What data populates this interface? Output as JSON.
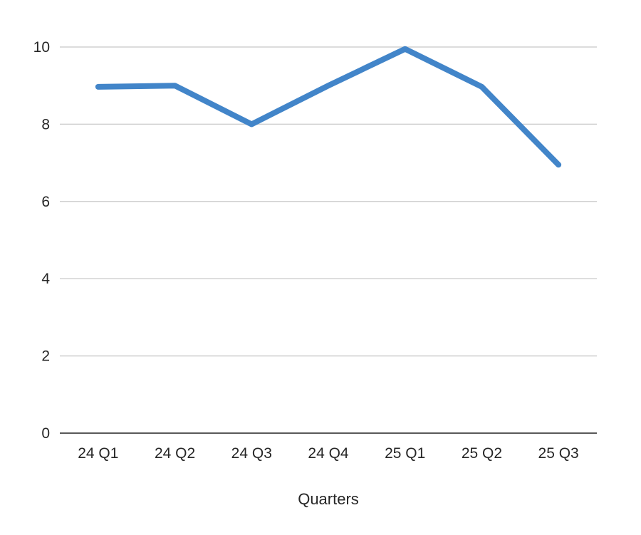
{
  "chart_data": {
    "type": "line",
    "title": "",
    "xlabel": "Quarters",
    "ylabel": "",
    "categories": [
      "24 Q1",
      "24 Q2",
      "24 Q3",
      "24 Q4",
      "25 Q1",
      "25 Q2",
      "25 Q3"
    ],
    "series": [
      {
        "values": [
          8.97,
          9.0,
          8.0,
          9.0,
          9.95,
          8.97,
          6.95
        ],
        "color": "#4285c9"
      }
    ],
    "ylim": [
      0,
      10
    ],
    "yticks": [
      0,
      2,
      4,
      6,
      8,
      10
    ],
    "grid": true,
    "legend": "none"
  }
}
